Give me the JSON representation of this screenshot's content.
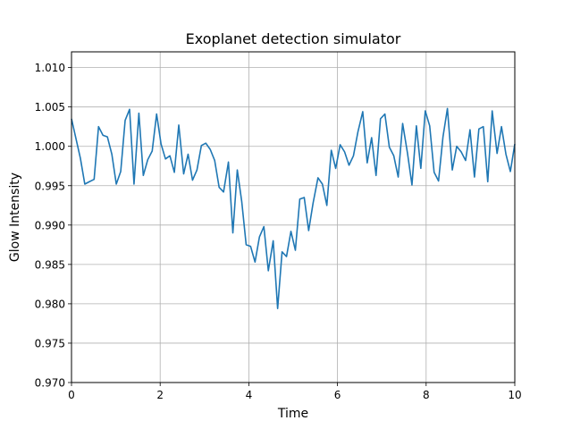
{
  "chart_data": {
    "type": "line",
    "title": "Exoplanet detection simulator",
    "xlabel": "Time",
    "ylabel": "Glow Intensity",
    "xlim": [
      0,
      10
    ],
    "ylim": [
      0.97,
      1.012
    ],
    "xticks": [
      0,
      2,
      4,
      6,
      8,
      10
    ],
    "yticks": [
      0.97,
      0.975,
      0.98,
      0.985,
      0.99,
      0.995,
      1.0,
      1.005,
      1.01
    ],
    "grid": true,
    "legend": "none",
    "line_color": "#1f77b4",
    "series": [
      {
        "x": [
          0.0,
          0.1,
          0.2,
          0.3,
          0.4,
          0.51,
          0.61,
          0.71,
          0.81,
          0.91,
          1.01,
          1.11,
          1.21,
          1.31,
          1.41,
          1.52,
          1.62,
          1.72,
          1.82,
          1.92,
          2.02,
          2.12,
          2.22,
          2.32,
          2.42,
          2.53,
          2.63,
          2.73,
          2.83,
          2.93,
          3.03,
          3.13,
          3.23,
          3.33,
          3.43,
          3.54,
          3.64,
          3.74,
          3.84,
          3.94,
          4.04,
          4.14,
          4.24,
          4.34,
          4.44,
          4.55,
          4.65,
          4.75,
          4.85,
          4.95,
          5.05,
          5.15,
          5.25,
          5.35,
          5.45,
          5.56,
          5.66,
          5.76,
          5.86,
          5.96,
          6.06,
          6.16,
          6.26,
          6.36,
          6.46,
          6.57,
          6.67,
          6.77,
          6.87,
          6.97,
          7.07,
          7.17,
          7.27,
          7.37,
          7.47,
          7.58,
          7.68,
          7.78,
          7.88,
          7.98,
          8.08,
          8.18,
          8.28,
          8.38,
          8.48,
          8.59,
          8.69,
          8.79,
          8.89,
          8.99,
          9.09,
          9.19,
          9.29,
          9.39,
          9.49,
          9.6,
          9.7,
          9.8,
          9.9,
          10.0
        ],
        "values": [
          1.0035,
          1.001,
          0.9985,
          0.9952,
          0.9955,
          0.9958,
          1.0025,
          1.0014,
          1.0012,
          0.999,
          0.9952,
          0.9968,
          1.0033,
          1.0047,
          0.9952,
          1.0042,
          0.9963,
          0.9983,
          0.9994,
          1.0041,
          1.0003,
          0.9984,
          0.9988,
          0.9967,
          1.0027,
          0.9965,
          0.999,
          0.9957,
          0.997,
          1.0001,
          1.0004,
          0.9996,
          0.9982,
          0.9948,
          0.9942,
          0.998,
          0.989,
          0.997,
          0.993,
          0.9875,
          0.9873,
          0.9853,
          0.9885,
          0.9898,
          0.9842,
          0.988,
          0.9794,
          0.9866,
          0.986,
          0.9892,
          0.9868,
          0.9933,
          0.9935,
          0.9893,
          0.9928,
          0.996,
          0.9952,
          0.9925,
          0.9995,
          0.9972,
          1.0002,
          0.9993,
          0.9976,
          0.9988,
          1.0018,
          1.0044,
          0.9979,
          1.0011,
          0.9963,
          1.0035,
          1.0041,
          0.9999,
          0.9988,
          0.9961,
          1.0029,
          0.9991,
          0.9951,
          1.0026,
          0.9972,
          1.0045,
          1.0026,
          0.9967,
          0.9956,
          1.0012,
          1.0048,
          0.997,
          1.0,
          0.9993,
          0.9982,
          1.0021,
          0.9961,
          1.0022,
          1.0025,
          0.9955,
          1.0045,
          0.9991,
          1.0025,
          0.999,
          0.9968,
          1.0003
        ]
      }
    ]
  }
}
